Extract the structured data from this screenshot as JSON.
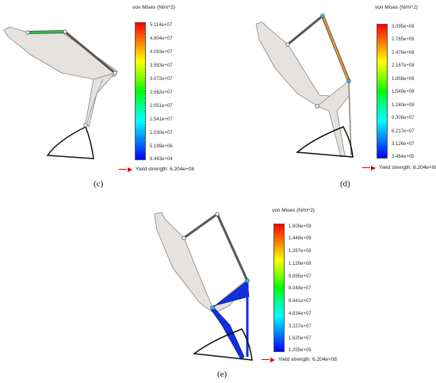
{
  "legend_title": "von Mises (N/m^2)",
  "yield_label": "Yield strength: 6.204e+08",
  "panels": {
    "c": {
      "caption": "(c)",
      "ticks": [
        "5.114e+07",
        "4.604e+07",
        "4.093e+07",
        "3.583e+07",
        "3.072e+07",
        "2.562e+07",
        "2.051e+07",
        "1.541e+07",
        "1.030e+07",
        "5.199e+06",
        "9.443e+04"
      ]
    },
    "d": {
      "caption": "(d)",
      "ticks": [
        "3.095e+08",
        "2.785e+08",
        "2.476e+08",
        "2.167e+08",
        "1.858e+08",
        "1.549e+08",
        "1.240e+08",
        "9.308e+07",
        "6.217e+07",
        "3.126e+07",
        "3.464e+05"
      ]
    },
    "e": {
      "caption": "(e)",
      "ticks": [
        "1.608e+08",
        "1.448e+08",
        "1.287e+08",
        "1.126e+08",
        "9.655e+07",
        "8.048e+07",
        "6.441e+07",
        "4.834e+07",
        "3.227e+07",
        "1.620e+07",
        "1.255e+05"
      ]
    }
  },
  "colors": {
    "part_fill": "#e6e2df",
    "part_stroke": "#8a8580",
    "rod_dark": "#5a5550",
    "highlight_green": "#22c63a",
    "highlight_orange": "#e89a2a",
    "highlight_blue": "#1030e0"
  }
}
